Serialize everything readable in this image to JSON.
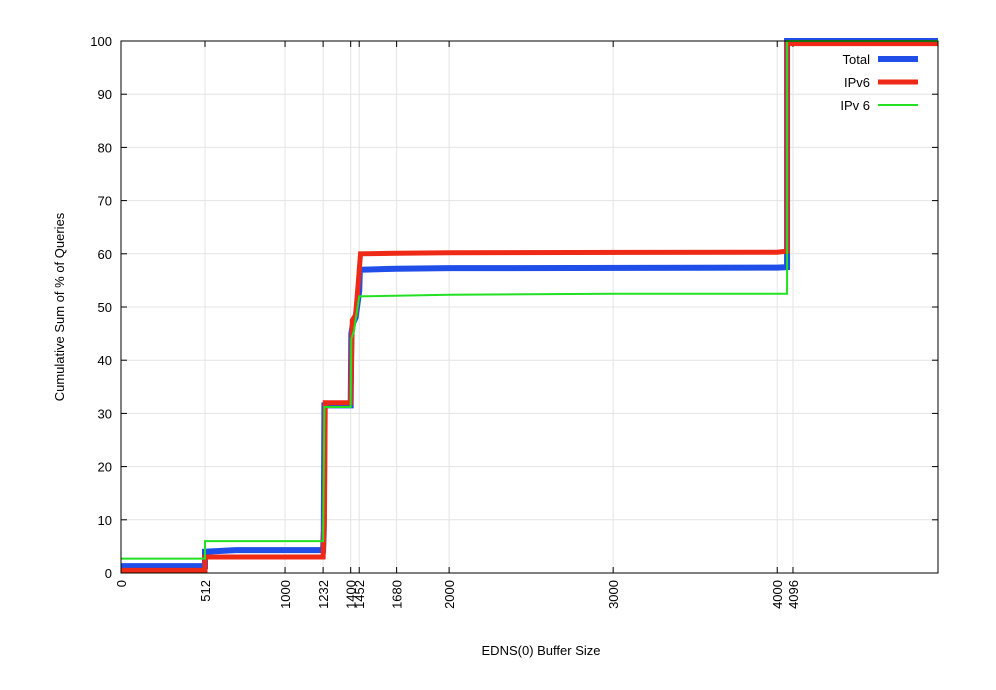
{
  "chart_data": {
    "type": "line",
    "xlabel": "EDNS(0) Buffer Size",
    "ylabel": "Cumulative Sum of % of Queries",
    "xlim": [
      0,
      4980
    ],
    "ylim": [
      0,
      100
    ],
    "xticks": [
      0,
      512,
      1000,
      1232,
      1400,
      1452,
      1680,
      2000,
      3000,
      4000,
      4096
    ],
    "yticks": [
      0,
      10,
      20,
      30,
      40,
      50,
      60,
      70,
      80,
      90,
      100
    ],
    "grid": true,
    "legend": "upper right",
    "series": [
      {
        "name": "Total",
        "color": "#1f4fe8",
        "x": [
          0,
          512,
          512,
          700,
          1232,
          1236,
          1240,
          1400,
          1404,
          1415,
          1430,
          1452,
          1456,
          1680,
          2000,
          4000,
          4060,
          4060,
          4980
        ],
        "values": [
          1.3,
          1.3,
          4,
          4.3,
          4.3,
          8,
          31.5,
          31.5,
          45,
          47,
          48,
          53,
          57,
          57.2,
          57.3,
          57.4,
          57.5,
          100,
          100
        ]
      },
      {
        "name": "IPv6",
        "color": "#ee2a16",
        "x": [
          0,
          512,
          512,
          1232,
          1240,
          1245,
          1400,
          1410,
          1430,
          1445,
          1460,
          1680,
          2000,
          4000,
          4060,
          4060,
          4980
        ],
        "values": [
          0.5,
          0.5,
          3,
          3,
          10,
          32,
          32,
          47.5,
          48.5,
          54,
          60,
          60.1,
          60.2,
          60.3,
          60.5,
          99.5,
          99.5
        ]
      },
      {
        "name": "IPv 6",
        "color": "#22e022",
        "x": [
          0,
          512,
          512,
          1232,
          1240,
          1400,
          1404,
          1420,
          1452,
          2000,
          3000,
          4060,
          4060,
          4980
        ],
        "values": [
          2.7,
          2.7,
          6,
          6,
          31.2,
          31.2,
          44,
          45.5,
          52,
          52.3,
          52.5,
          52.5,
          100,
          100
        ]
      }
    ]
  }
}
